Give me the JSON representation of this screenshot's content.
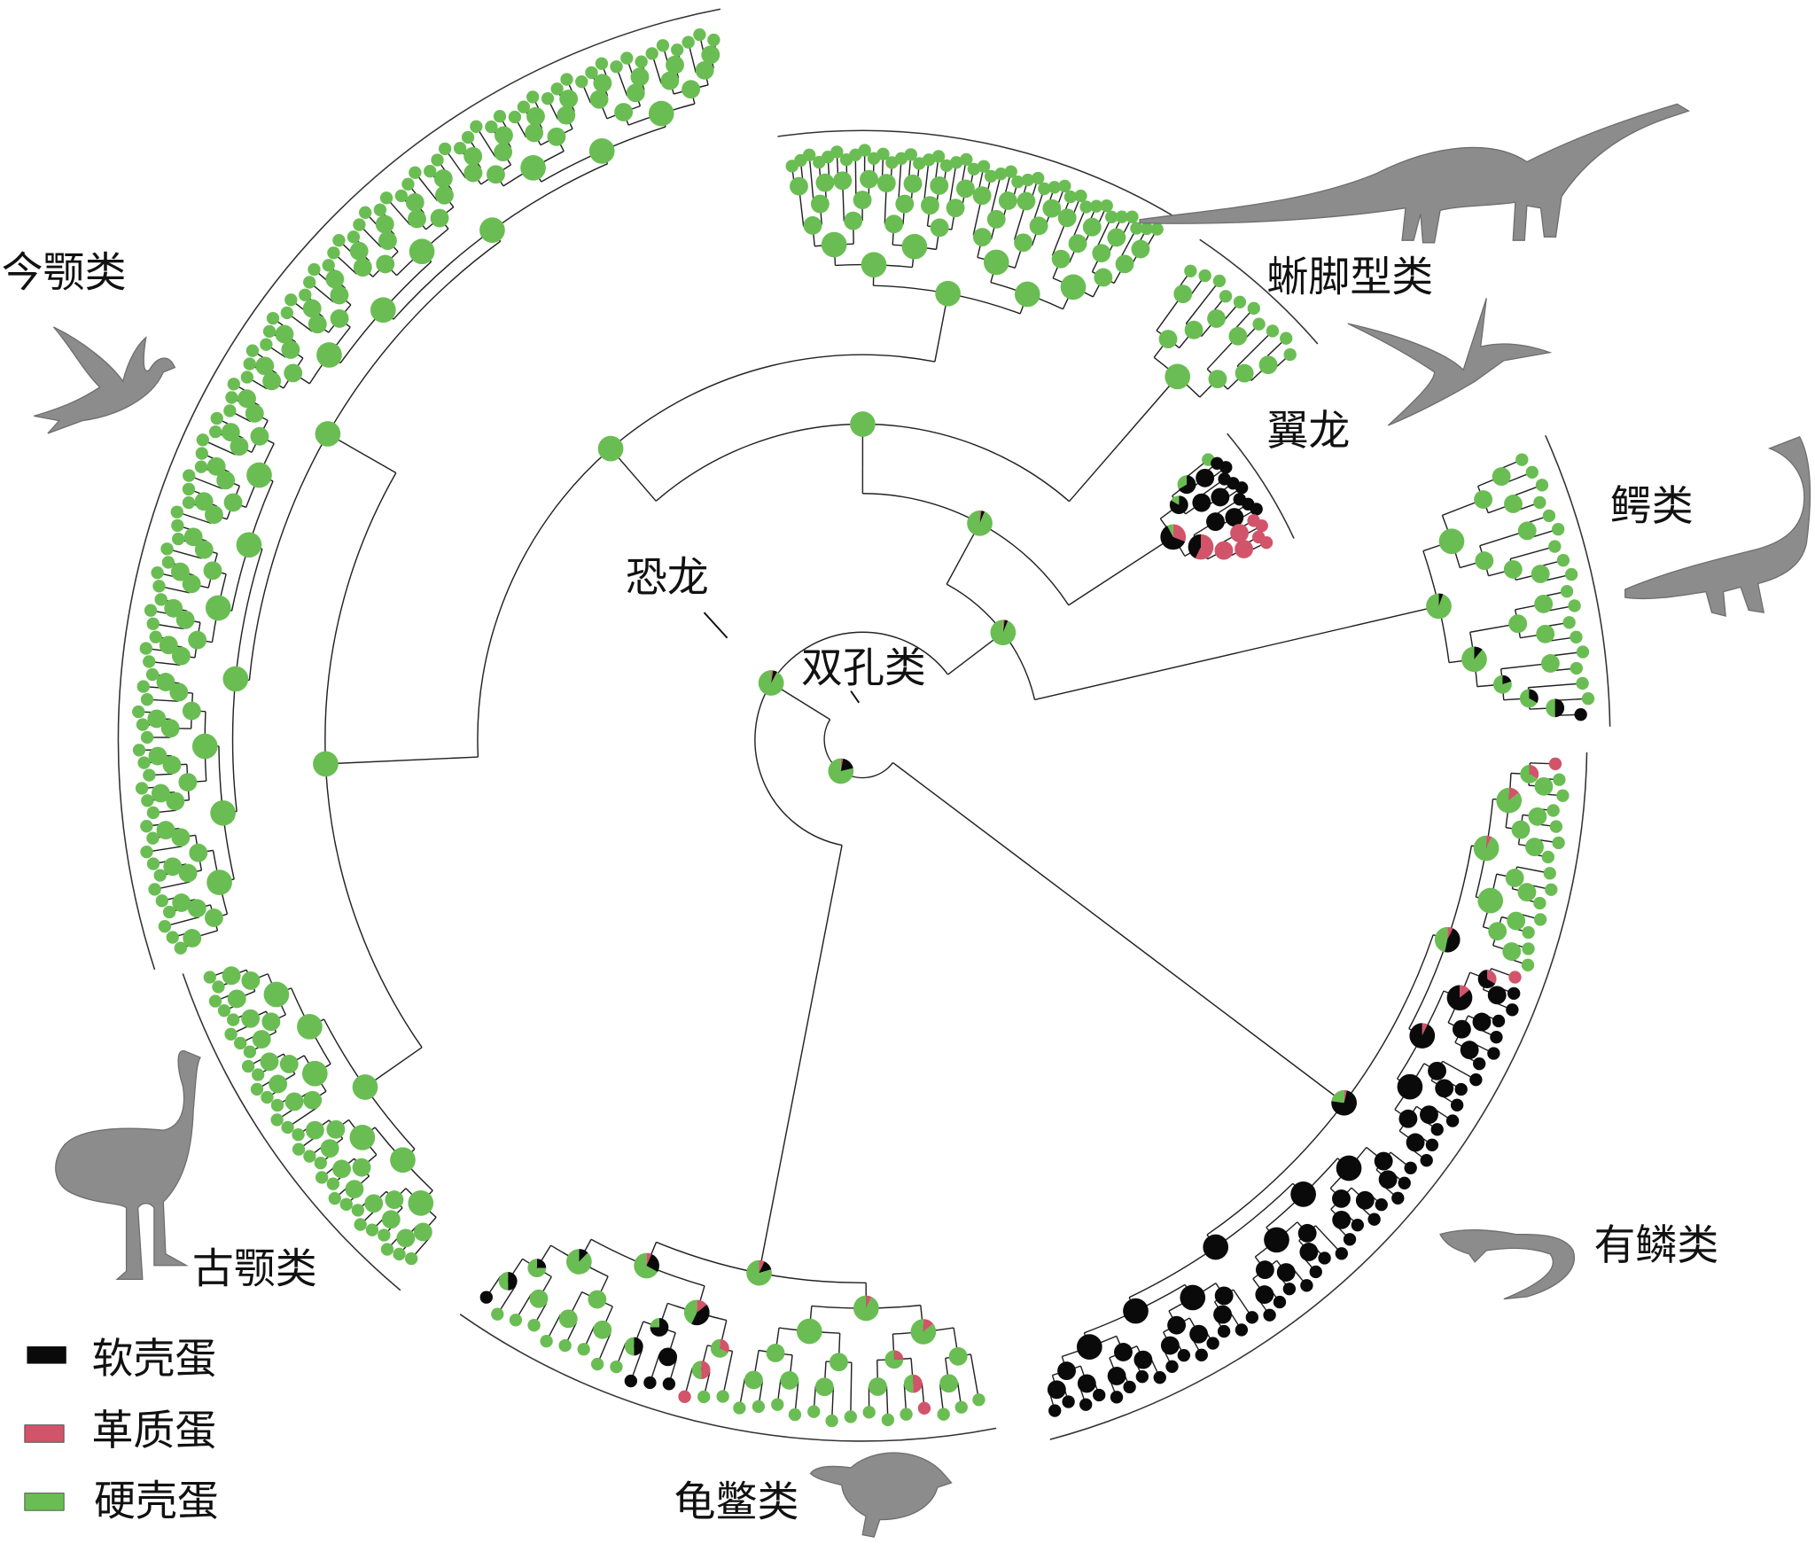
{
  "colors": {
    "soft_shell": "#0a0a0a",
    "leathery": "#d2546a",
    "hard_shell": "#6abd53"
  },
  "legend": [
    {
      "key": "b",
      "label": "软壳蛋",
      "color": "#0a0a0a"
    },
    {
      "key": "p",
      "label": "革质蛋",
      "color": "#d2546a"
    },
    {
      "key": "g",
      "label": "硬壳蛋",
      "color": "#6abd53"
    }
  ],
  "clades": [
    {
      "id": "squamata",
      "label": "有鳞类",
      "tips": "pgggggggggggggpbbbbbbbbbbbbbbbbbbbbbbbbbbbbbbbbbbbbbbbbbb"
    },
    {
      "id": "turtles",
      "label": "龟鳖类",
      "tips": "gggpggggggggggggpbbbggggggggb"
    },
    {
      "id": "palaeo",
      "label": "古颚类",
      "tips": "gggggggggggggggggggggggggggggg"
    },
    {
      "id": "neo",
      "label": "今颚类",
      "tips": "ggggggggggggggggggggggggggggggggggggggggggggggggggggggggggggggggggggggggggggggggggggggggggggggg"
    },
    {
      "id": "dino",
      "label": "",
      "tips": "gggggggggggggggggggggggggggggggggggggggggg"
    },
    {
      "id": "sauropod",
      "label": "蜥脚型类",
      "tips": "gggggggggg"
    },
    {
      "id": "ptero",
      "label": "翼龙",
      "tips": "gbbbbbbbbpppp"
    },
    {
      "id": "crocs",
      "label": "鳄类",
      "tips": "gggggggggggggggggb"
    }
  ],
  "topology": [
    "squamata",
    [
      "turtles",
      [
        [
          [
            [
              [
                "palaeo",
                "neo"
              ],
              "dino"
            ],
            "sauropod"
          ],
          "ptero"
        ],
        "crocs"
      ]
    ]
  ],
  "node_labels": {
    "dinosaur": "恐龙",
    "diapsid": "双孔类"
  }
}
